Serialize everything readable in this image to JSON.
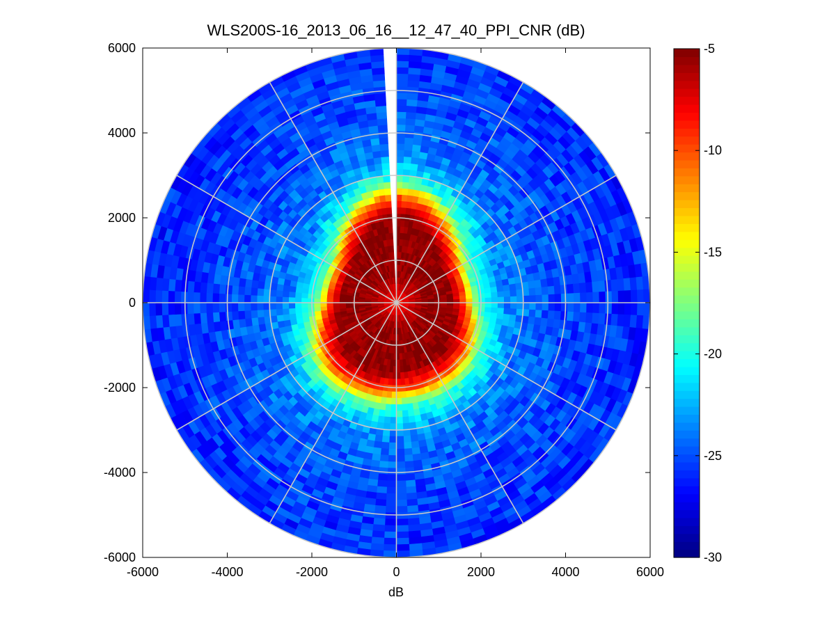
{
  "chart_data": {
    "type": "heatmap",
    "subtype": "polar-ppi",
    "title": "WLS200S-16_2013_06_16__12_47_40_PPI_CNR (dB)",
    "xlabel": "dB",
    "ylabel": "",
    "xlim": [
      -6000,
      6000
    ],
    "ylim": [
      -6000,
      6000
    ],
    "xticks": [
      "-6000",
      "-4000",
      "-2000",
      "0",
      "2000",
      "4000",
      "6000"
    ],
    "yticks": [
      "6000",
      "4000",
      "2000",
      "0",
      "-2000",
      "-4000",
      "-6000"
    ],
    "grid": true,
    "grid_rings": [
      1000,
      2000,
      3000,
      4000,
      5000,
      6000
    ],
    "grid_spokes_deg": [
      0,
      30,
      60,
      90,
      120,
      150,
      180,
      210,
      240,
      270,
      300,
      330
    ],
    "max_range": 6000,
    "colormap": "jet",
    "colorbar": {
      "clim": [
        -30,
        -5
      ],
      "ticks": [
        "-5",
        "-10",
        "-15",
        "-20",
        "-25",
        "-30"
      ],
      "location": "right"
    },
    "gap_azimuth_deg": [
      356,
      1
    ],
    "cnr_profile": [
      {
        "range": 0,
        "value": -9
      },
      {
        "range": 300,
        "value": -7
      },
      {
        "range": 700,
        "value": -5.5
      },
      {
        "range": 1500,
        "value": -5.5
      },
      {
        "range": 1900,
        "value": -10
      },
      {
        "range": 2300,
        "value": -19
      },
      {
        "range": 2900,
        "value": -23.5
      },
      {
        "range": 4000,
        "value": -25
      },
      {
        "range": 6000,
        "value": -26
      }
    ]
  }
}
